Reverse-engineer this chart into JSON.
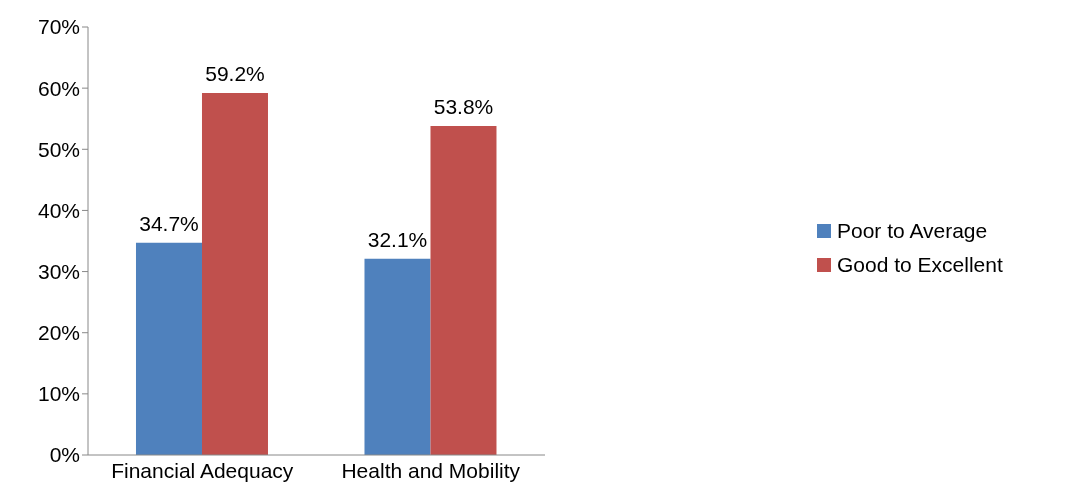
{
  "chart_data": {
    "type": "bar",
    "categories": [
      "Financial Adequacy",
      "Health and Mobility"
    ],
    "series": [
      {
        "name": "Poor to Average",
        "color": "#4f81bd",
        "values": [
          34.7,
          32.1
        ],
        "value_labels": [
          "34.7%",
          "32.1%"
        ]
      },
      {
        "name": "Good to Excellent",
        "color": "#c0504d",
        "values": [
          59.2,
          53.8
        ],
        "value_labels": [
          "59.2%",
          "53.8%"
        ]
      }
    ],
    "ylim": [
      0,
      70
    ],
    "yticks": [
      {
        "value": 0,
        "label": "0%"
      },
      {
        "value": 10,
        "label": "10%"
      },
      {
        "value": 20,
        "label": "20%"
      },
      {
        "value": 30,
        "label": "30%"
      },
      {
        "value": 40,
        "label": "40%"
      },
      {
        "value": 50,
        "label": "50%"
      },
      {
        "value": 60,
        "label": "60%"
      },
      {
        "value": 70,
        "label": "70%"
      }
    ],
    "grid": false,
    "legend": "right"
  }
}
